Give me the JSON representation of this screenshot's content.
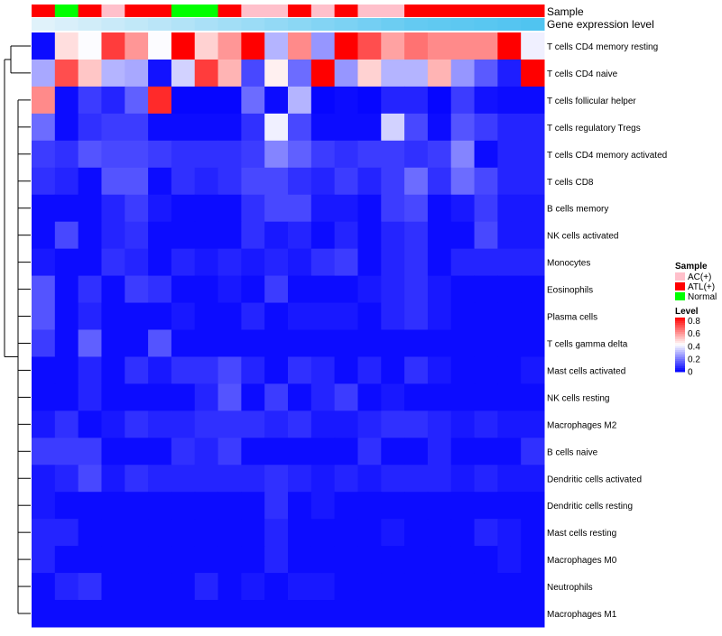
{
  "chart_data": {
    "type": "heatmap",
    "title": "",
    "annotation_tracks": [
      {
        "name": "Sample",
        "values": [
          "ATL(+)",
          "Normal",
          "ATL(+)",
          "AC(+)",
          "ATL(+)",
          "ATL(+)",
          "Normal",
          "Normal",
          "ATL(+)",
          "AC(+)",
          "AC(+)",
          "ATL(+)",
          "AC(+)",
          "ATL(+)",
          "AC(+)",
          "AC(+)",
          "ATL(+)",
          "ATL(+)",
          "ATL(+)",
          "ATL(+)",
          "ATL(+)",
          "ATL(+)"
        ]
      },
      {
        "name": "Gene expression level",
        "values": [
          0.05,
          0.1,
          0.15,
          0.2,
          0.25,
          0.3,
          0.35,
          0.4,
          0.45,
          0.5,
          0.55,
          0.6,
          0.65,
          0.7,
          0.75,
          0.8,
          0.85,
          0.88,
          0.9,
          0.92,
          0.95,
          0.98
        ]
      }
    ],
    "rows": [
      "T cells CD4 memory resting",
      "T cells CD4 naive",
      "T cells follicular helper",
      "T cells regulatory  Tregs",
      "T cells CD4 memory activated",
      "T cells CD8",
      "B cells memory",
      "NK cells activated",
      "Monocytes",
      "Eosinophils",
      "Plasma cells",
      "T cells gamma delta",
      "Mast cells activated",
      "NK cells resting",
      "Macrophages M2",
      "B cells naive",
      "Dendritic cells activated",
      "Dendritic cells resting",
      "Mast cells resting",
      "Macrophages M0",
      "Neutrophils",
      "Macrophages M1"
    ],
    "values": [
      [
        0.02,
        0.48,
        0.42,
        0.75,
        0.6,
        0.42,
        0.85,
        0.5,
        0.6,
        0.86,
        0.3,
        0.62,
        0.25,
        0.86,
        0.72,
        0.58,
        0.66,
        0.62,
        0.62,
        0.62,
        0.86,
        0.4
      ],
      [
        0.28,
        0.72,
        0.52,
        0.3,
        0.28,
        0.03,
        0.35,
        0.75,
        0.55,
        0.12,
        0.45,
        0.18,
        0.85,
        0.25,
        0.5,
        0.3,
        0.3,
        0.55,
        0.25,
        0.15,
        0.05,
        0.85
      ],
      [
        0.62,
        0.02,
        0.1,
        0.06,
        0.16,
        0.78,
        0.01,
        0.01,
        0.01,
        0.18,
        0.02,
        0.3,
        0.01,
        0.02,
        0.01,
        0.06,
        0.06,
        0.01,
        0.1,
        0.03,
        0.02,
        0.02
      ],
      [
        0.18,
        0.02,
        0.08,
        0.1,
        0.1,
        0.02,
        0.02,
        0.02,
        0.02,
        0.08,
        0.4,
        0.12,
        0.02,
        0.02,
        0.02,
        0.35,
        0.12,
        0.02,
        0.14,
        0.1,
        0.06,
        0.06
      ],
      [
        0.1,
        0.08,
        0.14,
        0.12,
        0.12,
        0.1,
        0.08,
        0.08,
        0.08,
        0.1,
        0.22,
        0.16,
        0.1,
        0.08,
        0.1,
        0.1,
        0.08,
        0.1,
        0.22,
        0.02,
        0.06,
        0.06
      ],
      [
        0.08,
        0.06,
        0.02,
        0.14,
        0.14,
        0.02,
        0.08,
        0.06,
        0.08,
        0.12,
        0.12,
        0.08,
        0.06,
        0.1,
        0.06,
        0.1,
        0.18,
        0.08,
        0.18,
        0.12,
        0.06,
        0.06
      ],
      [
        0.02,
        0.02,
        0.02,
        0.06,
        0.1,
        0.04,
        0.02,
        0.02,
        0.02,
        0.08,
        0.12,
        0.12,
        0.04,
        0.04,
        0.02,
        0.1,
        0.12,
        0.02,
        0.04,
        0.1,
        0.04,
        0.04
      ],
      [
        0.02,
        0.12,
        0.02,
        0.06,
        0.08,
        0.02,
        0.02,
        0.02,
        0.02,
        0.08,
        0.04,
        0.06,
        0.02,
        0.06,
        0.02,
        0.06,
        0.08,
        0.02,
        0.02,
        0.12,
        0.04,
        0.04
      ],
      [
        0.04,
        0.02,
        0.02,
        0.08,
        0.06,
        0.02,
        0.06,
        0.04,
        0.06,
        0.04,
        0.06,
        0.04,
        0.08,
        0.1,
        0.02,
        0.06,
        0.08,
        0.02,
        0.06,
        0.06,
        0.06,
        0.06
      ],
      [
        0.14,
        0.02,
        0.08,
        0.02,
        0.1,
        0.08,
        0.02,
        0.02,
        0.04,
        0.02,
        0.1,
        0.02,
        0.02,
        0.02,
        0.04,
        0.06,
        0.08,
        0.04,
        0.02,
        0.02,
        0.02,
        0.02
      ],
      [
        0.14,
        0.02,
        0.06,
        0.02,
        0.02,
        0.02,
        0.04,
        0.02,
        0.02,
        0.06,
        0.02,
        0.04,
        0.04,
        0.04,
        0.02,
        0.06,
        0.08,
        0.04,
        0.02,
        0.02,
        0.02,
        0.02
      ],
      [
        0.1,
        0.02,
        0.16,
        0.02,
        0.02,
        0.14,
        0.02,
        0.02,
        0.02,
        0.02,
        0.02,
        0.02,
        0.02,
        0.02,
        0.02,
        0.02,
        0.02,
        0.02,
        0.02,
        0.02,
        0.02,
        0.02
      ],
      [
        0.02,
        0.02,
        0.06,
        0.02,
        0.08,
        0.04,
        0.08,
        0.08,
        0.12,
        0.06,
        0.02,
        0.08,
        0.06,
        0.02,
        0.06,
        0.02,
        0.08,
        0.04,
        0.02,
        0.02,
        0.02,
        0.04
      ],
      [
        0.02,
        0.02,
        0.06,
        0.02,
        0.02,
        0.02,
        0.02,
        0.06,
        0.14,
        0.02,
        0.1,
        0.02,
        0.06,
        0.1,
        0.02,
        0.04,
        0.02,
        0.02,
        0.02,
        0.02,
        0.02,
        0.02
      ],
      [
        0.04,
        0.08,
        0.02,
        0.04,
        0.08,
        0.06,
        0.06,
        0.08,
        0.08,
        0.08,
        0.06,
        0.08,
        0.04,
        0.04,
        0.06,
        0.08,
        0.08,
        0.06,
        0.04,
        0.06,
        0.04,
        0.04
      ],
      [
        0.1,
        0.1,
        0.1,
        0.02,
        0.02,
        0.02,
        0.08,
        0.06,
        0.1,
        0.02,
        0.02,
        0.02,
        0.02,
        0.02,
        0.08,
        0.02,
        0.02,
        0.06,
        0.02,
        0.02,
        0.02,
        0.08
      ],
      [
        0.04,
        0.06,
        0.12,
        0.04,
        0.08,
        0.06,
        0.06,
        0.06,
        0.06,
        0.06,
        0.08,
        0.06,
        0.04,
        0.06,
        0.04,
        0.06,
        0.06,
        0.06,
        0.04,
        0.06,
        0.04,
        0.04
      ],
      [
        0.04,
        0.02,
        0.02,
        0.02,
        0.02,
        0.02,
        0.02,
        0.02,
        0.02,
        0.02,
        0.08,
        0.02,
        0.04,
        0.02,
        0.02,
        0.02,
        0.02,
        0.02,
        0.02,
        0.02,
        0.02,
        0.02
      ],
      [
        0.06,
        0.06,
        0.02,
        0.02,
        0.02,
        0.02,
        0.02,
        0.02,
        0.02,
        0.02,
        0.06,
        0.02,
        0.02,
        0.02,
        0.02,
        0.04,
        0.02,
        0.02,
        0.02,
        0.06,
        0.04,
        0.02
      ],
      [
        0.06,
        0.02,
        0.02,
        0.02,
        0.02,
        0.02,
        0.02,
        0.02,
        0.02,
        0.02,
        0.06,
        0.02,
        0.02,
        0.02,
        0.02,
        0.02,
        0.02,
        0.02,
        0.02,
        0.02,
        0.04,
        0.02
      ],
      [
        0.02,
        0.06,
        0.08,
        0.02,
        0.02,
        0.02,
        0.02,
        0.06,
        0.02,
        0.04,
        0.02,
        0.04,
        0.04,
        0.02,
        0.02,
        0.02,
        0.02,
        0.02,
        0.02,
        0.02,
        0.02,
        0.02
      ],
      [
        0.02,
        0.02,
        0.02,
        0.02,
        0.02,
        0.02,
        0.02,
        0.02,
        0.02,
        0.02,
        0.02,
        0.02,
        0.02,
        0.02,
        0.02,
        0.02,
        0.02,
        0.02,
        0.02,
        0.02,
        0.02,
        0.02
      ]
    ],
    "legends": {
      "sample": {
        "title": "Sample",
        "entries": [
          {
            "label": "AC(+)",
            "color": "#ffc0cb"
          },
          {
            "label": "ATL(+)",
            "color": "#ff0000"
          },
          {
            "label": "Normal",
            "color": "#00ff00"
          }
        ]
      },
      "level": {
        "title": "Level",
        "ticks": [
          "0.8",
          "0.6",
          "0.4",
          "0.2",
          "0"
        ],
        "tick_values": [
          0.8,
          0.6,
          0.4,
          0.2,
          0
        ],
        "range": [
          0,
          0.85
        ]
      }
    },
    "colors": {
      "low": "#0000ff",
      "mid": "#ffffff",
      "high": "#ff0000",
      "expr_low": "#e8f4fb",
      "expr_high": "#4dc3f0",
      "dendrogram": "#000000"
    }
  }
}
